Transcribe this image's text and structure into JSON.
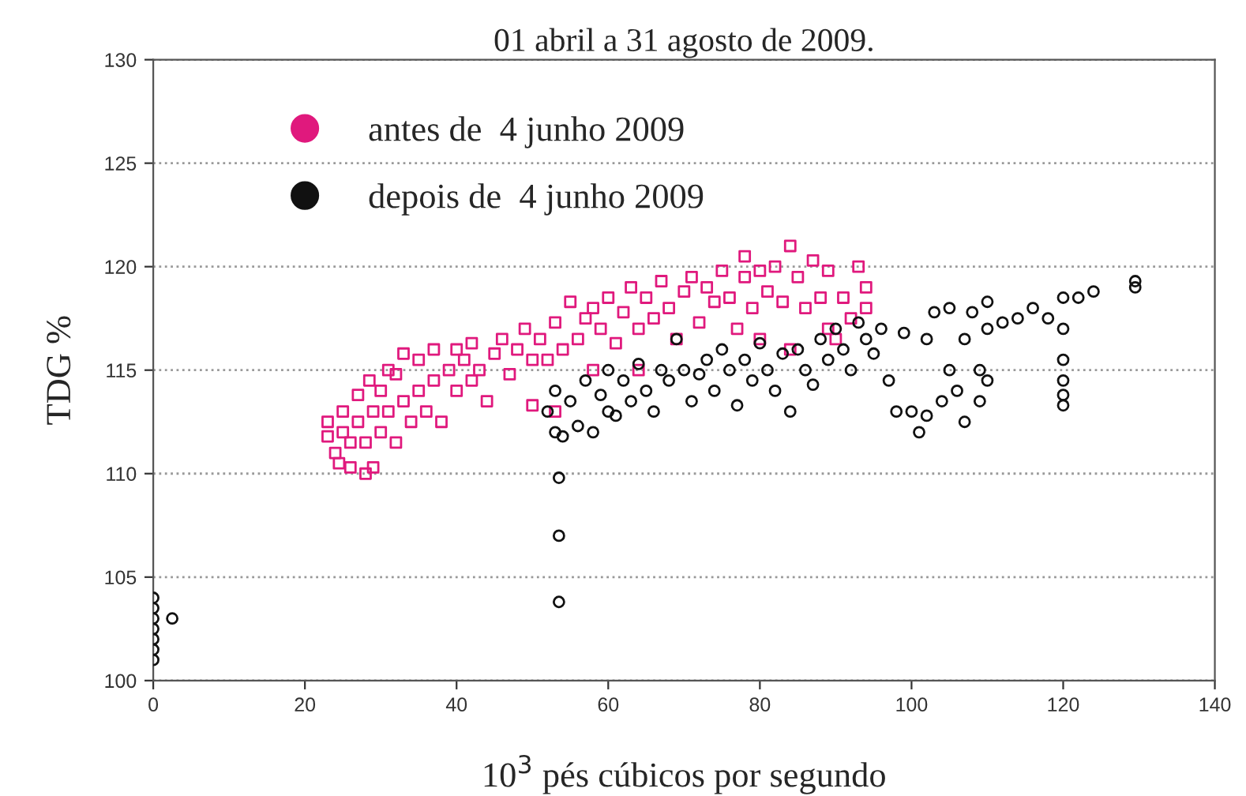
{
  "chart_data": {
    "type": "scatter",
    "title": "01 abril a 31 agosto de 2009.",
    "xlabel": "10$^{3}$ pés cúbicos por segundo",
    "ylabel": "TDG %",
    "xlim": [
      0,
      140
    ],
    "xticks": [
      0,
      20,
      40,
      60,
      80,
      100,
      120,
      140
    ],
    "ylim": [
      100,
      130
    ],
    "yticks": [
      100,
      105,
      110,
      115,
      120,
      125,
      130
    ],
    "grid": "y",
    "legend": "top left",
    "series": [
      {
        "name": "antes de  4 junho 2009",
        "color": "#e0197d",
        "marker": "square",
        "x": [
          23,
          23,
          24,
          24.5,
          25,
          25,
          26,
          26,
          27,
          27,
          28,
          28,
          28.5,
          29,
          29,
          30,
          30,
          31,
          31,
          32,
          32,
          33,
          33,
          34,
          35,
          35,
          36,
          37,
          37,
          38,
          39,
          40,
          40,
          41,
          42,
          42,
          43,
          44,
          45,
          46,
          47,
          48,
          49,
          50,
          50,
          51,
          52,
          53,
          53,
          54,
          55,
          56,
          57,
          58,
          58,
          59,
          60,
          61,
          62,
          63,
          64,
          64,
          65,
          66,
          67,
          68,
          69,
          70,
          71,
          72,
          73,
          74,
          75,
          76,
          77,
          78,
          78,
          79,
          80,
          80,
          81,
          82,
          83,
          84,
          84,
          85,
          86,
          87,
          88,
          89,
          89,
          90,
          91,
          92,
          93,
          94,
          94
        ],
        "values": [
          112.5,
          111.8,
          111,
          110.5,
          112,
          113,
          110.3,
          111.5,
          112.5,
          113.8,
          110,
          111.5,
          114.5,
          113,
          110.3,
          112,
          114,
          115,
          113,
          111.5,
          114.8,
          113.5,
          115.8,
          112.5,
          114,
          115.5,
          113,
          114.5,
          116,
          112.5,
          115,
          114,
          116,
          115.5,
          114.5,
          116.3,
          115,
          113.5,
          115.8,
          116.5,
          114.8,
          116,
          117,
          115.5,
          113.3,
          116.5,
          115.5,
          117.3,
          113,
          116,
          118.3,
          116.5,
          117.5,
          115,
          118,
          117,
          118.5,
          116.3,
          117.8,
          119,
          117,
          115,
          118.5,
          117.5,
          119.3,
          118,
          116.5,
          118.8,
          119.5,
          117.3,
          119,
          118.3,
          119.8,
          118.5,
          117,
          119.5,
          120.5,
          118,
          119.8,
          116.5,
          118.8,
          120,
          118.3,
          121,
          116,
          119.5,
          118,
          120.3,
          118.5,
          117,
          119.8,
          116.5,
          118.5,
          117.5,
          120,
          119,
          118
        ]
      },
      {
        "name": "depois de  4 junho 2009",
        "color": "#111111",
        "marker": "circle",
        "x": [
          0,
          0,
          0,
          0,
          0,
          0,
          0,
          2.5,
          53.5,
          53.5,
          53.5,
          52,
          53,
          53,
          54,
          55,
          56,
          57,
          58,
          59,
          60,
          60,
          61,
          62,
          63,
          64,
          65,
          66,
          67,
          68,
          69,
          70,
          71,
          72,
          73,
          74,
          75,
          76,
          77,
          78,
          79,
          80,
          81,
          82,
          83,
          84,
          85,
          86,
          87,
          88,
          89,
          90,
          91,
          92,
          93,
          94,
          95,
          96,
          97,
          98,
          99,
          100,
          101,
          102,
          102,
          103,
          104,
          105,
          105,
          106,
          107,
          107,
          108,
          109,
          109,
          110,
          110,
          110,
          112,
          114,
          116,
          118,
          120,
          120,
          120,
          120,
          120,
          120,
          122,
          124,
          129.5,
          129.5
        ],
        "values": [
          101,
          101.5,
          102,
          102.5,
          103,
          103.5,
          104,
          103,
          109.8,
          107,
          103.8,
          113,
          112,
          114,
          111.8,
          113.5,
          112.3,
          114.5,
          112,
          113.8,
          115,
          113,
          112.8,
          114.5,
          113.5,
          115.3,
          114,
          113,
          115,
          114.5,
          116.5,
          115,
          113.5,
          114.8,
          115.5,
          114,
          116,
          115,
          113.3,
          115.5,
          114.5,
          116.3,
          115,
          114,
          115.8,
          113,
          116,
          115,
          114.3,
          116.5,
          115.5,
          117,
          116,
          115,
          117.3,
          116.5,
          115.8,
          117,
          114.5,
          113,
          116.8,
          113,
          112,
          112.8,
          116.5,
          117.8,
          113.5,
          115,
          118,
          114,
          116.5,
          112.5,
          117.8,
          115,
          113.5,
          117,
          118.3,
          114.5,
          117.3,
          117.5,
          118,
          117.5,
          118.5,
          117,
          115.5,
          114.5,
          113.8,
          113.3,
          118.5,
          118.8,
          119.3,
          119
        ]
      }
    ]
  }
}
